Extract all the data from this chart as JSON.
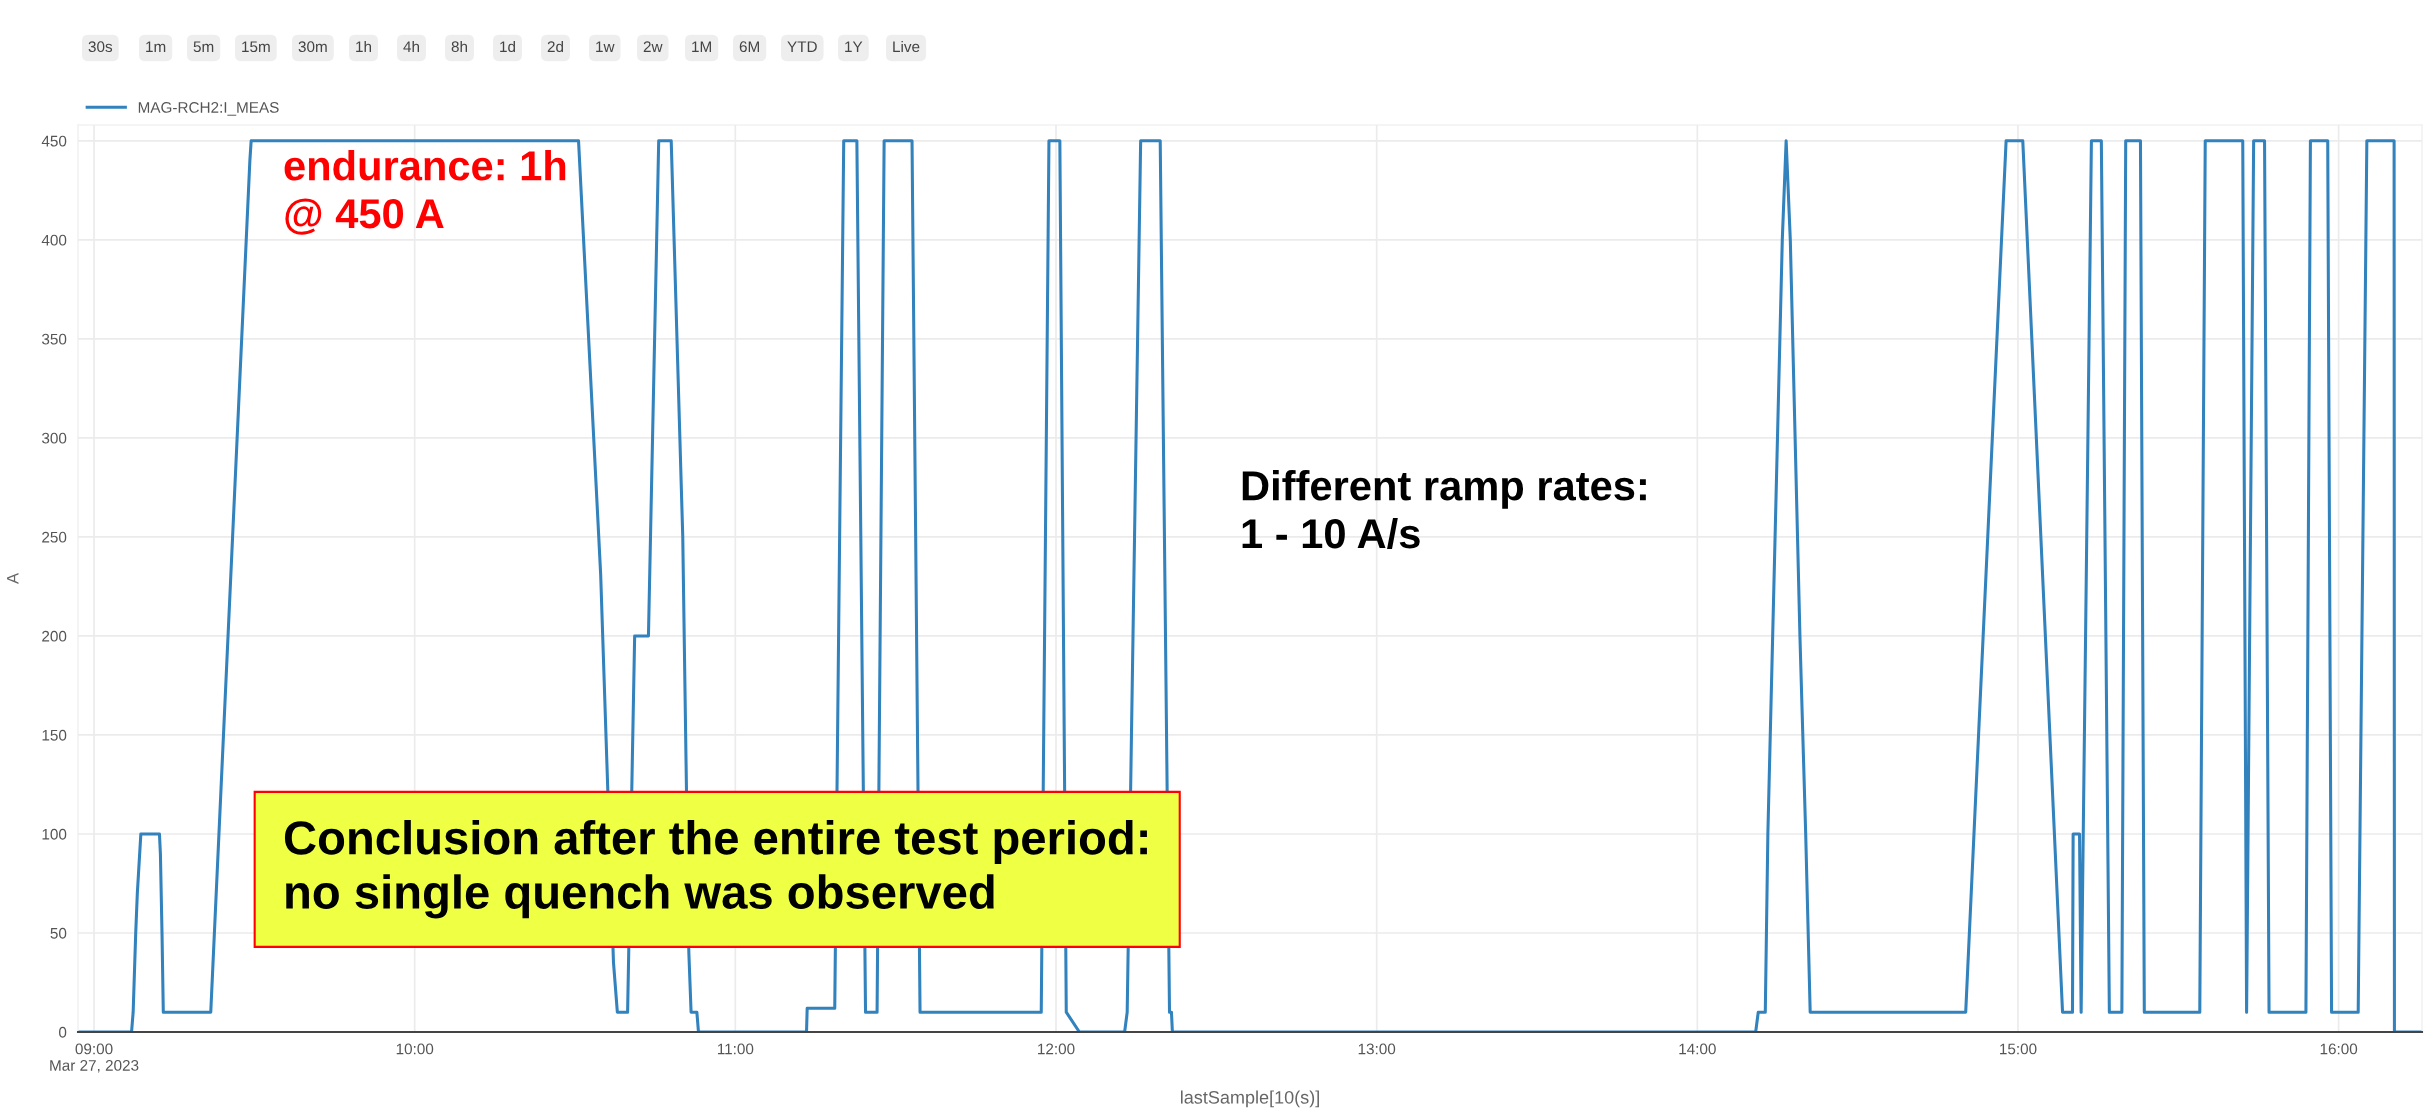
{
  "chart_data": {
    "type": "line",
    "xlabel": "lastSample[10(s)]",
    "ylabel": "A",
    "x": [
      8.95,
      9.117,
      9.122,
      9.13,
      9.135,
      9.146,
      9.204,
      9.207,
      9.212,
      9.216,
      9.364,
      9.486,
      9.49,
      10.511,
      10.58,
      10.62,
      10.632,
      10.664,
      10.686,
      10.729,
      10.761,
      10.8,
      10.836,
      10.855,
      10.862,
      10.88,
      10.885,
      11.222,
      11.224,
      11.31,
      11.338,
      11.379,
      11.406,
      11.442,
      11.464,
      11.551,
      11.576,
      11.954,
      11.978,
      12.012,
      12.032,
      12.073,
      12.214,
      12.222,
      12.264,
      12.325,
      12.354,
      12.36,
      12.363,
      14.182,
      14.19,
      14.212,
      14.22,
      14.265,
      14.277,
      14.29,
      14.32,
      14.338,
      14.352,
      14.837,
      14.963,
      15.015,
      15.139,
      15.17,
      15.172,
      15.192,
      15.197,
      15.229,
      15.26,
      15.285,
      15.324,
      15.336,
      15.382,
      15.394,
      15.567,
      15.584,
      15.701,
      15.713,
      15.735,
      15.769,
      15.783,
      15.898,
      15.912,
      15.966,
      15.978,
      16.061,
      16.088,
      16.173,
      16.174,
      16.26
    ],
    "series": [
      {
        "name": "MAG-RCH2:I_MEAS",
        "color": "#3282bd",
        "values": [
          0,
          0,
          10,
          50,
          70,
          100,
          100,
          90,
          50,
          10,
          10,
          440,
          450,
          450,
          231,
          35,
          10,
          10,
          200,
          200,
          450,
          450,
          250,
          40,
          10,
          10,
          0,
          0,
          12,
          12,
          450,
          450,
          10,
          10,
          450,
          450,
          10,
          10,
          450,
          450,
          10,
          0,
          0,
          10,
          450,
          450,
          10,
          10,
          0,
          0,
          10,
          10,
          100,
          400,
          450,
          400,
          200,
          100,
          10,
          10,
          450,
          450,
          10,
          10,
          100,
          100,
          10,
          450,
          450,
          10,
          10,
          450,
          450,
          10,
          10,
          450,
          450,
          10,
          450,
          450,
          10,
          10,
          450,
          450,
          10,
          10,
          450,
          450,
          0,
          0
        ]
      }
    ],
    "xlim": [
      8.95,
      16.26
    ],
    "ylim": [
      0,
      458
    ],
    "xticks": [
      {
        "value": 9,
        "label": "09:00\nMar 27, 2023"
      },
      {
        "value": 10,
        "label": "10:00"
      },
      {
        "value": 11,
        "label": "11:00"
      },
      {
        "value": 12,
        "label": "12:00"
      },
      {
        "value": 13,
        "label": "13:00"
      },
      {
        "value": 14,
        "label": "14:00"
      },
      {
        "value": 15,
        "label": "15:00"
      },
      {
        "value": 16,
        "label": "16:00"
      }
    ],
    "yticks": [
      0,
      50,
      100,
      150,
      200,
      250,
      300,
      350,
      400,
      450
    ],
    "grid": true,
    "legend": "top left",
    "marker": "none",
    "line_style": "solid",
    "annotations": [
      "30s",
      "1m",
      "5m",
      "15m",
      "30m",
      "1h",
      "4h",
      "8h",
      "1d",
      "2d",
      "1w",
      "2w",
      "1M",
      "6M",
      "YTD",
      "1Y",
      "Live",
      "endurance: 1h\n@ 450 A",
      "Different ramp rates:\n1 - 10 A/s",
      "Conclusion after the entire test period:\nno single quench was observed"
    ]
  }
}
